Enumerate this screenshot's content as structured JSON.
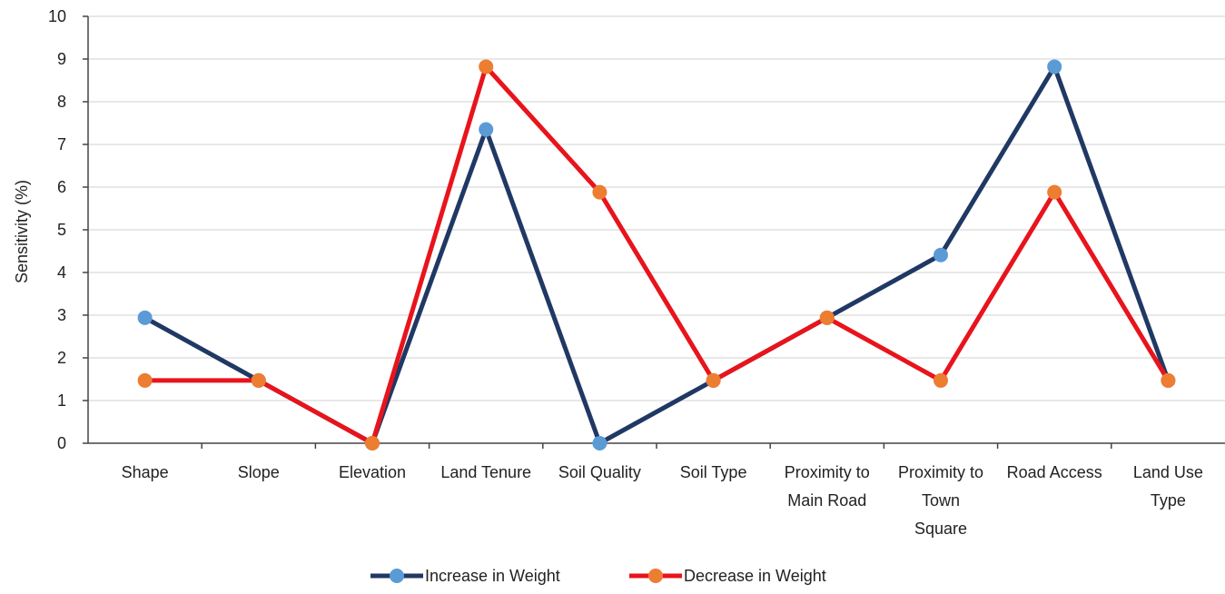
{
  "chart_data": {
    "type": "line",
    "title": "",
    "xlabel": "",
    "ylabel": "Sensitivity (%)",
    "ylim": [
      0,
      10
    ],
    "y_ticks": [
      0,
      1,
      2,
      3,
      4,
      5,
      6,
      7,
      8,
      9,
      10
    ],
    "grid": true,
    "legend_position": "bottom",
    "categories": [
      [
        "Shape"
      ],
      [
        "Slope"
      ],
      [
        "Elevation"
      ],
      [
        "Land Tenure"
      ],
      [
        "Soil Quality"
      ],
      [
        "Soil Type"
      ],
      [
        "Proximity to",
        "Main Road"
      ],
      [
        "Proximity to",
        "Town",
        "Square"
      ],
      [
        "Road Access"
      ],
      [
        "Land Use",
        "Type"
      ]
    ],
    "series": [
      {
        "name": "Increase in Weight",
        "line_color": "#203864",
        "marker_color": "#5B9BD5",
        "values": [
          2.94,
          1.47,
          0,
          7.35,
          0,
          1.47,
          2.94,
          4.41,
          8.82,
          1.47
        ]
      },
      {
        "name": "Decrease in Weight",
        "line_color": "#E8141C",
        "marker_color": "#ED7D31",
        "values": [
          1.47,
          1.47,
          0,
          8.82,
          5.88,
          1.47,
          2.94,
          1.47,
          5.88,
          1.47
        ]
      }
    ]
  }
}
